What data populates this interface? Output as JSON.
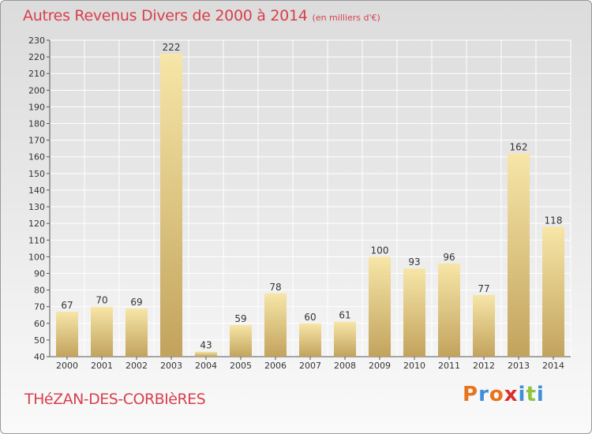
{
  "header": {
    "title": "Autres Revenus Divers de 2000 à 2014",
    "subtitle": "(en milliers d'€)"
  },
  "footer": {
    "commune": "THéZAN-DES-CORBIèRES",
    "brand": "Proxiti",
    "brand_colors": [
      "#e8741c",
      "#3c8fd8",
      "#e8741c",
      "#d8302c",
      "#3c8fd8",
      "#8cc43c",
      "#3c8fd8"
    ]
  },
  "colors": {
    "title": "#d8404c",
    "bar_light": "#f6e3a4",
    "bar_dark": "#c3a55e",
    "grid": "#ffffff"
  },
  "chart_data": {
    "type": "bar",
    "title": "Autres Revenus Divers de 2000 à 2014",
    "subtitle": "(en milliers d'€)",
    "categories": [
      "2000",
      "2001",
      "2002",
      "2003",
      "2004",
      "2005",
      "2006",
      "2007",
      "2008",
      "2009",
      "2010",
      "2011",
      "2012",
      "2013",
      "2014"
    ],
    "values": [
      67,
      70,
      69,
      222,
      43,
      59,
      78,
      60,
      61,
      100,
      93,
      96,
      77,
      162,
      118
    ],
    "ylim": [
      40,
      230
    ],
    "yticks": [
      40,
      50,
      60,
      70,
      80,
      90,
      100,
      110,
      120,
      130,
      140,
      150,
      160,
      170,
      180,
      190,
      200,
      210,
      220,
      230
    ],
    "grid": true,
    "legend": "none"
  }
}
